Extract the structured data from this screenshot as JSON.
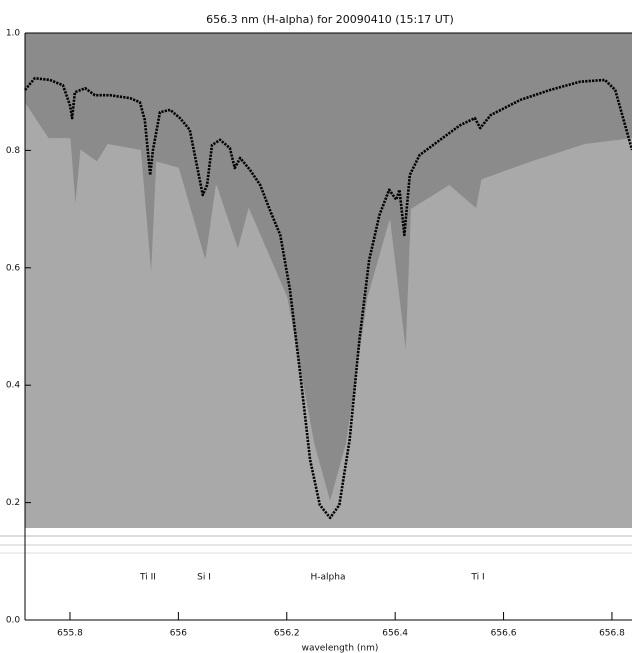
{
  "chart_data": {
    "type": "line",
    "title": "656.3 nm (H-alpha) for 20090410 (15:17 UT)",
    "x_label": "wavelength (nm)",
    "xlim": [
      655.717,
      656.837
    ],
    "xticks": [
      655.8,
      656.0,
      656.2,
      656.4,
      656.6,
      656.8
    ],
    "ylim": [
      0,
      1
    ],
    "yticks": [
      {
        "value": 0,
        "label": "0.0"
      },
      0.2,
      0.4,
      0.6,
      0.8,
      {
        "value": 1,
        "label": "1.0"
      }
    ],
    "annotations": [
      "Ti II",
      "Si I",
      "H-alpha",
      "Ti I"
    ],
    "series": [
      {
        "color": "#000000",
        "x": [
          655.717,
          655.735,
          655.763,
          655.787,
          655.8,
          655.804,
          655.809,
          655.828,
          655.846,
          655.874,
          655.911,
          655.929,
          655.938,
          655.948,
          655.953,
          655.966,
          655.985,
          656.003,
          656.021,
          656.034,
          656.045,
          656.053,
          656.062,
          656.077,
          656.095,
          656.104,
          656.114,
          656.132,
          656.151,
          656.169,
          656.188,
          656.206,
          656.224,
          656.243,
          656.261,
          656.28,
          656.297,
          656.316,
          656.334,
          656.352,
          656.371,
          656.389,
          656.402,
          656.408,
          656.417,
          656.427,
          656.445,
          656.483,
          656.52,
          656.547,
          656.557,
          656.576,
          656.631,
          656.686,
          656.741,
          656.787,
          656.806,
          656.837
        ],
        "values": [
          0.903,
          0.923,
          0.92,
          0.911,
          0.877,
          0.855,
          0.899,
          0.906,
          0.894,
          0.894,
          0.889,
          0.882,
          0.852,
          0.758,
          0.8,
          0.865,
          0.869,
          0.855,
          0.835,
          0.775,
          0.724,
          0.741,
          0.809,
          0.818,
          0.804,
          0.77,
          0.787,
          0.767,
          0.741,
          0.698,
          0.656,
          0.562,
          0.426,
          0.273,
          0.196,
          0.174,
          0.196,
          0.307,
          0.477,
          0.613,
          0.69,
          0.733,
          0.716,
          0.733,
          0.656,
          0.758,
          0.792,
          0.818,
          0.843,
          0.855,
          0.838,
          0.86,
          0.886,
          0.903,
          0.917,
          0.92,
          0.903,
          0.801
        ]
      },
      {
        "color": "#a9a9a9",
        "x": [
          655.717,
          655.76,
          655.8,
          655.81,
          655.82,
          655.85,
          655.87,
          655.93,
          655.95,
          655.96,
          656.0,
          656.05,
          656.07,
          656.11,
          656.13,
          656.2,
          656.25,
          656.28,
          656.31,
          656.35,
          656.39,
          656.42,
          656.43,
          656.5,
          656.55,
          656.56,
          656.65,
          656.75,
          656.837
        ],
        "values": [
          0.88,
          0.82,
          0.82,
          0.7,
          0.8,
          0.78,
          0.81,
          0.8,
          0.58,
          0.78,
          0.77,
          0.61,
          0.74,
          0.63,
          0.7,
          0.55,
          0.3,
          0.2,
          0.3,
          0.55,
          0.68,
          0.45,
          0.7,
          0.74,
          0.7,
          0.75,
          0.78,
          0.81,
          0.82
        ]
      }
    ]
  }
}
